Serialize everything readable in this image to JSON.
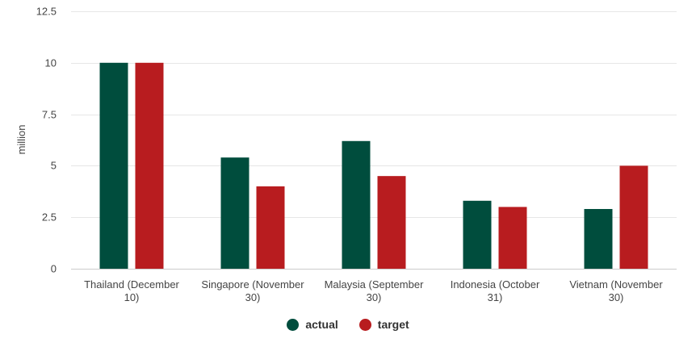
{
  "chart_data": {
    "type": "bar",
    "categories": [
      [
        "Thailand (December",
        "10)"
      ],
      [
        "Singapore (November",
        "30)"
      ],
      [
        "Malaysia (September",
        "30)"
      ],
      [
        "Indonesia (October",
        "31)"
      ],
      [
        "Vietnam (November",
        "30)"
      ]
    ],
    "series": [
      {
        "name": "actual",
        "color": "#004d3d",
        "values": [
          10,
          5.4,
          6.2,
          3.3,
          2.9
        ]
      },
      {
        "name": "target",
        "color": "#b81c1f",
        "values": [
          10,
          4,
          4.5,
          3,
          5
        ]
      }
    ],
    "ylabel": "million",
    "ylim": [
      0,
      12.5
    ],
    "yticks": [
      "0",
      "2.5",
      "5",
      "7.5",
      "10",
      "12.5"
    ],
    "ytick_values": [
      0,
      2.5,
      5,
      7.5,
      10,
      12.5
    ],
    "grid": true,
    "legend_position": "bottom-center"
  }
}
